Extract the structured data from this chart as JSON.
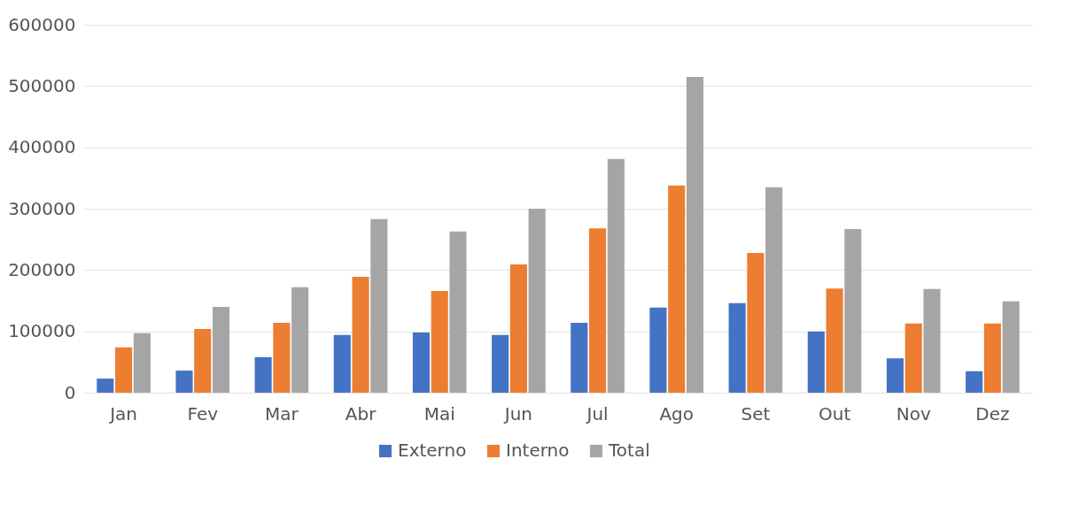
{
  "chart_data": {
    "type": "bar",
    "categories": [
      "Jan",
      "Fev",
      "Mar",
      "Abr",
      "Mai",
      "Jun",
      "Jul",
      "Ago",
      "Set",
      "Out",
      "Nov",
      "Dez"
    ],
    "series": [
      {
        "name": "Externo",
        "color": "#4472c4",
        "values": [
          23000,
          36000,
          58000,
          94000,
          98000,
          94000,
          114000,
          139000,
          146000,
          100000,
          56000,
          35000
        ]
      },
      {
        "name": "Interno",
        "color": "#ed7d31",
        "values": [
          74000,
          104000,
          114000,
          189000,
          166000,
          209000,
          268000,
          338000,
          228000,
          170000,
          113000,
          113000
        ]
      },
      {
        "name": "Total",
        "color": "#a5a5a5",
        "values": [
          97000,
          140000,
          172000,
          283000,
          263000,
          300000,
          381000,
          515000,
          335000,
          267000,
          169000,
          149000
        ]
      }
    ],
    "ylim": [
      0,
      600000
    ],
    "yticks": [
      0,
      100000,
      200000,
      300000,
      400000,
      500000,
      600000
    ],
    "grid": "y",
    "legend": "bottom"
  }
}
